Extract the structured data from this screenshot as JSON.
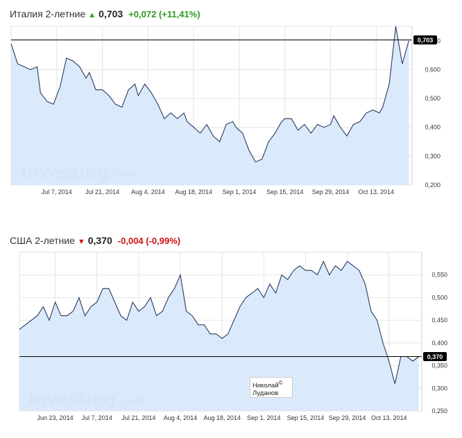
{
  "charts": [
    {
      "name": "Италия 2-летние",
      "direction": "up",
      "price": "0,703",
      "change": "+0,072 (+11,41%)",
      "change_color": "#2a9b1e",
      "last_label": "0,703",
      "watermark": "Investing",
      "watermark_suffix": ".com"
    },
    {
      "name": "США 2-летние",
      "direction": "down",
      "price": "0,370",
      "change": "-0,004 (-0,99%)",
      "change_color": "#cc1111",
      "last_label": "0,370",
      "watermark": "Investing",
      "watermark_suffix": ".com",
      "signature": [
        "Николай",
        "Луданов"
      ],
      "signature_mark": "©"
    }
  ],
  "colors": {
    "line": "#2a3a5c",
    "fill": "#d7e8fb",
    "grid": "#e4e4e4",
    "ref": "#000000"
  },
  "chart_data": [
    {
      "type": "area",
      "ylim": [
        0.2,
        0.75
      ],
      "yticks": [
        0.2,
        0.3,
        0.4,
        0.5,
        0.6,
        0.7
      ],
      "ytick_labels": [
        "0,200",
        "0,300",
        "0,400",
        "0,500",
        "0,600",
        "0,700"
      ],
      "xlim": [
        "2014-06-23",
        "2014-10-24"
      ],
      "xticks": [
        "2014-07-07",
        "2014-07-21",
        "2014-08-04",
        "2014-08-18",
        "2014-09-01",
        "2014-09-15",
        "2014-09-29",
        "2014-10-13"
      ],
      "xtick_labels": [
        "Jul 7, 2014",
        "Jul 21, 2014",
        "Aug 4, 2014",
        "Aug 18, 2014",
        "Sep 1, 2014",
        "Sep 15, 2014",
        "Sep 29, 2014",
        "Oct 13, 2014"
      ],
      "reference": 0.703,
      "x": [
        "2014-06-23",
        "2014-06-25",
        "2014-06-27",
        "2014-06-29",
        "2014-07-01",
        "2014-07-02",
        "2014-07-04",
        "2014-07-06",
        "2014-07-08",
        "2014-07-10",
        "2014-07-12",
        "2014-07-14",
        "2014-07-16",
        "2014-07-17",
        "2014-07-19",
        "2014-07-21",
        "2014-07-23",
        "2014-07-25",
        "2014-07-27",
        "2014-07-29",
        "2014-07-31",
        "2014-08-01",
        "2014-08-03",
        "2014-08-05",
        "2014-08-07",
        "2014-08-09",
        "2014-08-11",
        "2014-08-13",
        "2014-08-15",
        "2014-08-16",
        "2014-08-18",
        "2014-08-20",
        "2014-08-22",
        "2014-08-24",
        "2014-08-26",
        "2014-08-28",
        "2014-08-30",
        "2014-08-31",
        "2014-09-02",
        "2014-09-04",
        "2014-09-06",
        "2014-09-08",
        "2014-09-10",
        "2014-09-12",
        "2014-09-14",
        "2014-09-15",
        "2014-09-17",
        "2014-09-19",
        "2014-09-21",
        "2014-09-23",
        "2014-09-25",
        "2014-09-27",
        "2014-09-29",
        "2014-09-30",
        "2014-10-02",
        "2014-10-04",
        "2014-10-06",
        "2014-10-08",
        "2014-10-10",
        "2014-10-12",
        "2014-10-14",
        "2014-10-15",
        "2014-10-17",
        "2014-10-19",
        "2014-10-21",
        "2014-10-23"
      ],
      "values": [
        0.69,
        0.62,
        0.61,
        0.6,
        0.61,
        0.52,
        0.49,
        0.48,
        0.54,
        0.64,
        0.63,
        0.61,
        0.57,
        0.59,
        0.53,
        0.53,
        0.51,
        0.48,
        0.47,
        0.53,
        0.55,
        0.51,
        0.55,
        0.52,
        0.48,
        0.43,
        0.45,
        0.43,
        0.45,
        0.42,
        0.4,
        0.38,
        0.41,
        0.37,
        0.35,
        0.41,
        0.42,
        0.4,
        0.38,
        0.32,
        0.28,
        0.29,
        0.35,
        0.38,
        0.42,
        0.43,
        0.43,
        0.39,
        0.41,
        0.38,
        0.41,
        0.4,
        0.41,
        0.44,
        0.4,
        0.37,
        0.41,
        0.42,
        0.45,
        0.46,
        0.45,
        0.47,
        0.55,
        0.75,
        0.62,
        0.7
      ]
    },
    {
      "type": "area",
      "ylim": [
        0.25,
        0.6
      ],
      "yticks": [
        0.25,
        0.3,
        0.35,
        0.4,
        0.45,
        0.5,
        0.55
      ],
      "ytick_labels": [
        "0,250",
        "0,300",
        "0,350",
        "0,400",
        "0,450",
        "0,500",
        "0,550"
      ],
      "xlim": [
        "2014-06-11",
        "2014-10-24"
      ],
      "xticks": [
        "2014-06-23",
        "2014-07-07",
        "2014-07-21",
        "2014-08-04",
        "2014-08-18",
        "2014-09-01",
        "2014-09-15",
        "2014-09-29",
        "2014-10-13"
      ],
      "xtick_labels": [
        "Jun 23, 2014",
        "Jul 7, 2014",
        "Jul 21, 2014",
        "Aug 4, 2014",
        "Aug 18, 2014",
        "Sep 1, 2014",
        "Sep 15, 2014",
        "Sep 29, 2014",
        "Oct 13, 2014"
      ],
      "reference": 0.37,
      "x": [
        "2014-06-11",
        "2014-06-13",
        "2014-06-15",
        "2014-06-17",
        "2014-06-19",
        "2014-06-21",
        "2014-06-23",
        "2014-06-25",
        "2014-06-27",
        "2014-06-29",
        "2014-07-01",
        "2014-07-03",
        "2014-07-05",
        "2014-07-07",
        "2014-07-09",
        "2014-07-11",
        "2014-07-13",
        "2014-07-15",
        "2014-07-17",
        "2014-07-19",
        "2014-07-21",
        "2014-07-23",
        "2014-07-25",
        "2014-07-27",
        "2014-07-29",
        "2014-07-31",
        "2014-08-02",
        "2014-08-04",
        "2014-08-06",
        "2014-08-08",
        "2014-08-10",
        "2014-08-12",
        "2014-08-14",
        "2014-08-16",
        "2014-08-18",
        "2014-08-20",
        "2014-08-22",
        "2014-08-24",
        "2014-08-26",
        "2014-08-28",
        "2014-08-30",
        "2014-09-01",
        "2014-09-03",
        "2014-09-05",
        "2014-09-07",
        "2014-09-09",
        "2014-09-11",
        "2014-09-13",
        "2014-09-15",
        "2014-09-17",
        "2014-09-19",
        "2014-09-21",
        "2014-09-23",
        "2014-09-25",
        "2014-09-27",
        "2014-09-29",
        "2014-10-01",
        "2014-10-03",
        "2014-10-05",
        "2014-10-07",
        "2014-10-09",
        "2014-10-11",
        "2014-10-13",
        "2014-10-15",
        "2014-10-17",
        "2014-10-19",
        "2014-10-21",
        "2014-10-23"
      ],
      "values": [
        0.43,
        0.44,
        0.45,
        0.46,
        0.48,
        0.45,
        0.49,
        0.46,
        0.46,
        0.47,
        0.5,
        0.46,
        0.48,
        0.49,
        0.52,
        0.52,
        0.49,
        0.46,
        0.45,
        0.49,
        0.47,
        0.48,
        0.5,
        0.46,
        0.47,
        0.5,
        0.52,
        0.55,
        0.47,
        0.46,
        0.44,
        0.44,
        0.42,
        0.42,
        0.41,
        0.42,
        0.45,
        0.48,
        0.5,
        0.51,
        0.52,
        0.5,
        0.53,
        0.51,
        0.55,
        0.54,
        0.56,
        0.57,
        0.56,
        0.56,
        0.55,
        0.58,
        0.55,
        0.57,
        0.56,
        0.58,
        0.57,
        0.56,
        0.53,
        0.47,
        0.45,
        0.4,
        0.36,
        0.31,
        0.37,
        0.37,
        0.36,
        0.37
      ]
    }
  ]
}
